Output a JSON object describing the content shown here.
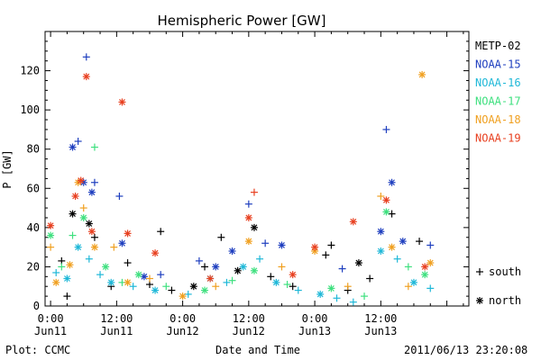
{
  "chart_data": {
    "type": "scatter",
    "title": "Hemispheric Power [GW]",
    "xlabel": "Date and Time",
    "ylabel": "P [GW]",
    "ylim": [
      0,
      140
    ],
    "xlim": [
      "2011-06-10T23:00",
      "2011-06-14T04:00"
    ],
    "y_ticks": [
      0,
      20,
      40,
      60,
      80,
      100,
      120
    ],
    "x_ticks": [
      {
        "x": "2011-06-11T00:00",
        "label": "0:00",
        "date": "Jun11"
      },
      {
        "x": "2011-06-11T12:00",
        "label": "12:00",
        "date": "Jun11"
      },
      {
        "x": "2011-06-12T00:00",
        "label": "0:00",
        "date": "Jun12"
      },
      {
        "x": "2011-06-12T12:00",
        "label": "12:00",
        "date": "Jun12"
      },
      {
        "x": "2011-06-13T00:00",
        "label": "0:00",
        "date": "Jun13"
      },
      {
        "x": "2011-06-13T12:00",
        "label": "12:00",
        "date": "Jun13"
      }
    ],
    "legend_position": "right",
    "series": [
      {
        "name": "METP-02",
        "color": "#000000",
        "points": [
          {
            "x": "2011-06-11T02:00",
            "y": 23,
            "h": "S"
          },
          {
            "x": "2011-06-11T03:00",
            "y": 5,
            "h": "S"
          },
          {
            "x": "2011-06-11T04:00",
            "y": 47,
            "h": "N"
          },
          {
            "x": "2011-06-11T07:00",
            "y": 42,
            "h": "N"
          },
          {
            "x": "2011-06-11T08:00",
            "y": 35,
            "h": "S"
          },
          {
            "x": "2011-06-11T11:00",
            "y": 10,
            "h": "S"
          },
          {
            "x": "2011-06-11T14:00",
            "y": 22,
            "h": "S"
          },
          {
            "x": "2011-06-11T18:00",
            "y": 11,
            "h": "S"
          },
          {
            "x": "2011-06-11T20:00",
            "y": 38,
            "h": "S"
          },
          {
            "x": "2011-06-11T22:00",
            "y": 8,
            "h": "S"
          },
          {
            "x": "2011-06-12T02:00",
            "y": 10,
            "h": "N"
          },
          {
            "x": "2011-06-12T04:00",
            "y": 20,
            "h": "S"
          },
          {
            "x": "2011-06-12T07:00",
            "y": 35,
            "h": "S"
          },
          {
            "x": "2011-06-12T10:00",
            "y": 18,
            "h": "N"
          },
          {
            "x": "2011-06-12T13:00",
            "y": 40,
            "h": "N"
          },
          {
            "x": "2011-06-12T16:00",
            "y": 15,
            "h": "S"
          },
          {
            "x": "2011-06-12T20:00",
            "y": 10,
            "h": "S"
          },
          {
            "x": "2011-06-13T02:00",
            "y": 26,
            "h": "S"
          },
          {
            "x": "2011-06-13T03:00",
            "y": 31,
            "h": "S"
          },
          {
            "x": "2011-06-13T06:00",
            "y": 8,
            "h": "S"
          },
          {
            "x": "2011-06-13T08:00",
            "y": 22,
            "h": "N"
          },
          {
            "x": "2011-06-13T10:00",
            "y": 14,
            "h": "S"
          },
          {
            "x": "2011-06-13T14:00",
            "y": 47,
            "h": "S"
          },
          {
            "x": "2011-06-13T19:00",
            "y": 33,
            "h": "S"
          }
        ]
      },
      {
        "name": "NOAA-15",
        "color": "#1f3fbf",
        "points": [
          {
            "x": "2011-06-11T04:00",
            "y": 81,
            "h": "N"
          },
          {
            "x": "2011-06-11T05:00",
            "y": 84,
            "h": "S"
          },
          {
            "x": "2011-06-11T06:00",
            "y": 63,
            "h": "N"
          },
          {
            "x": "2011-06-11T06:30",
            "y": 127,
            "h": "S"
          },
          {
            "x": "2011-06-11T07:30",
            "y": 58,
            "h": "N"
          },
          {
            "x": "2011-06-11T08:00",
            "y": 63,
            "h": "S"
          },
          {
            "x": "2011-06-11T12:30",
            "y": 56,
            "h": "S"
          },
          {
            "x": "2011-06-11T13:00",
            "y": 32,
            "h": "N"
          },
          {
            "x": "2011-06-11T17:00",
            "y": 15,
            "h": "N"
          },
          {
            "x": "2011-06-11T20:00",
            "y": 16,
            "h": "S"
          },
          {
            "x": "2011-06-12T03:00",
            "y": 23,
            "h": "S"
          },
          {
            "x": "2011-06-12T06:00",
            "y": 20,
            "h": "N"
          },
          {
            "x": "2011-06-12T09:00",
            "y": 28,
            "h": "N"
          },
          {
            "x": "2011-06-12T12:00",
            "y": 52,
            "h": "S"
          },
          {
            "x": "2011-06-12T15:00",
            "y": 32,
            "h": "S"
          },
          {
            "x": "2011-06-12T18:00",
            "y": 31,
            "h": "N"
          },
          {
            "x": "2011-06-13T05:00",
            "y": 19,
            "h": "S"
          },
          {
            "x": "2011-06-13T12:00",
            "y": 38,
            "h": "N"
          },
          {
            "x": "2011-06-13T13:00",
            "y": 90,
            "h": "S"
          },
          {
            "x": "2011-06-13T14:00",
            "y": 63,
            "h": "N"
          },
          {
            "x": "2011-06-13T16:00",
            "y": 33,
            "h": "N"
          },
          {
            "x": "2011-06-13T21:00",
            "y": 31,
            "h": "S"
          }
        ]
      },
      {
        "name": "NOAA-16",
        "color": "#1fb8d8",
        "points": [
          {
            "x": "2011-06-11T01:00",
            "y": 17,
            "h": "S"
          },
          {
            "x": "2011-06-11T03:00",
            "y": 14,
            "h": "N"
          },
          {
            "x": "2011-06-11T05:00",
            "y": 30,
            "h": "N"
          },
          {
            "x": "2011-06-11T07:00",
            "y": 24,
            "h": "S"
          },
          {
            "x": "2011-06-11T09:00",
            "y": 16,
            "h": "S"
          },
          {
            "x": "2011-06-11T11:00",
            "y": 12,
            "h": "N"
          },
          {
            "x": "2011-06-11T15:00",
            "y": 10,
            "h": "S"
          },
          {
            "x": "2011-06-11T19:00",
            "y": 8,
            "h": "N"
          },
          {
            "x": "2011-06-12T01:00",
            "y": 6,
            "h": "S"
          },
          {
            "x": "2011-06-12T05:00",
            "y": 14,
            "h": "N"
          },
          {
            "x": "2011-06-12T08:00",
            "y": 12,
            "h": "S"
          },
          {
            "x": "2011-06-12T11:00",
            "y": 20,
            "h": "N"
          },
          {
            "x": "2011-06-12T14:00",
            "y": 24,
            "h": "S"
          },
          {
            "x": "2011-06-12T17:00",
            "y": 12,
            "h": "N"
          },
          {
            "x": "2011-06-12T21:00",
            "y": 8,
            "h": "S"
          },
          {
            "x": "2011-06-13T01:00",
            "y": 6,
            "h": "N"
          },
          {
            "x": "2011-06-13T04:00",
            "y": 4,
            "h": "S"
          },
          {
            "x": "2011-06-13T07:00",
            "y": 2,
            "h": "S"
          },
          {
            "x": "2011-06-13T12:00",
            "y": 28,
            "h": "N"
          },
          {
            "x": "2011-06-13T15:00",
            "y": 24,
            "h": "S"
          },
          {
            "x": "2011-06-13T18:00",
            "y": 12,
            "h": "N"
          },
          {
            "x": "2011-06-13T21:00",
            "y": 9,
            "h": "S"
          }
        ]
      },
      {
        "name": "NOAA-17",
        "color": "#3fe07f",
        "points": [
          {
            "x": "2011-06-11T00:00",
            "y": 36,
            "h": "N"
          },
          {
            "x": "2011-06-11T02:00",
            "y": 20,
            "h": "S"
          },
          {
            "x": "2011-06-11T04:00",
            "y": 36,
            "h": "S"
          },
          {
            "x": "2011-06-11T06:00",
            "y": 45,
            "h": "N"
          },
          {
            "x": "2011-06-11T08:00",
            "y": 81,
            "h": "S"
          },
          {
            "x": "2011-06-11T10:00",
            "y": 20,
            "h": "N"
          },
          {
            "x": "2011-06-11T13:00",
            "y": 12,
            "h": "S"
          },
          {
            "x": "2011-06-11T16:00",
            "y": 16,
            "h": "N"
          },
          {
            "x": "2011-06-11T21:00",
            "y": 10,
            "h": "S"
          },
          {
            "x": "2011-06-12T04:00",
            "y": 8,
            "h": "N"
          },
          {
            "x": "2011-06-12T09:00",
            "y": 13,
            "h": "S"
          },
          {
            "x": "2011-06-12T13:00",
            "y": 18,
            "h": "N"
          },
          {
            "x": "2011-06-12T19:00",
            "y": 11,
            "h": "S"
          },
          {
            "x": "2011-06-13T03:00",
            "y": 9,
            "h": "N"
          },
          {
            "x": "2011-06-13T09:00",
            "y": 5,
            "h": "S"
          },
          {
            "x": "2011-06-13T13:00",
            "y": 48,
            "h": "N"
          },
          {
            "x": "2011-06-13T17:00",
            "y": 20,
            "h": "S"
          },
          {
            "x": "2011-06-13T20:00",
            "y": 16,
            "h": "N"
          }
        ]
      },
      {
        "name": "NOAA-18",
        "color": "#f0a020",
        "points": [
          {
            "x": "2011-06-11T00:00",
            "y": 30,
            "h": "S"
          },
          {
            "x": "2011-06-11T01:00",
            "y": 12,
            "h": "N"
          },
          {
            "x": "2011-06-11T03:30",
            "y": 21,
            "h": "N"
          },
          {
            "x": "2011-06-11T05:00",
            "y": 63,
            "h": "N"
          },
          {
            "x": "2011-06-11T06:00",
            "y": 50,
            "h": "S"
          },
          {
            "x": "2011-06-11T08:00",
            "y": 30,
            "h": "N"
          },
          {
            "x": "2011-06-11T11:30",
            "y": 30,
            "h": "S"
          },
          {
            "x": "2011-06-11T14:00",
            "y": 12,
            "h": "N"
          },
          {
            "x": "2011-06-11T18:00",
            "y": 14,
            "h": "S"
          },
          {
            "x": "2011-06-12T00:00",
            "y": 5,
            "h": "N"
          },
          {
            "x": "2011-06-12T06:00",
            "y": 10,
            "h": "S"
          },
          {
            "x": "2011-06-12T12:00",
            "y": 33,
            "h": "N"
          },
          {
            "x": "2011-06-12T18:00",
            "y": 20,
            "h": "S"
          },
          {
            "x": "2011-06-13T00:00",
            "y": 28,
            "h": "N"
          },
          {
            "x": "2011-06-13T06:00",
            "y": 10,
            "h": "S"
          },
          {
            "x": "2011-06-13T12:00",
            "y": 56,
            "h": "S"
          },
          {
            "x": "2011-06-13T14:00",
            "y": 30,
            "h": "N"
          },
          {
            "x": "2011-06-13T17:00",
            "y": 10,
            "h": "S"
          },
          {
            "x": "2011-06-13T19:30",
            "y": 118,
            "h": "N"
          },
          {
            "x": "2011-06-13T21:00",
            "y": 22,
            "h": "N"
          }
        ]
      },
      {
        "name": "NOAA-19",
        "color": "#e84020",
        "points": [
          {
            "x": "2011-06-11T00:00",
            "y": 41,
            "h": "N"
          },
          {
            "x": "2011-06-11T04:30",
            "y": 56,
            "h": "N"
          },
          {
            "x": "2011-06-11T05:30",
            "y": 64,
            "h": "N"
          },
          {
            "x": "2011-06-11T06:30",
            "y": 117,
            "h": "N"
          },
          {
            "x": "2011-06-11T07:30",
            "y": 38,
            "h": "N"
          },
          {
            "x": "2011-06-11T13:00",
            "y": 104,
            "h": "N"
          },
          {
            "x": "2011-06-11T14:00",
            "y": 37,
            "h": "N"
          },
          {
            "x": "2011-06-11T19:00",
            "y": 27,
            "h": "N"
          },
          {
            "x": "2011-06-12T05:00",
            "y": 14,
            "h": "N"
          },
          {
            "x": "2011-06-12T12:00",
            "y": 45,
            "h": "N"
          },
          {
            "x": "2011-06-12T13:00",
            "y": 58,
            "h": "S"
          },
          {
            "x": "2011-06-12T20:00",
            "y": 16,
            "h": "N"
          },
          {
            "x": "2011-06-13T00:00",
            "y": 30,
            "h": "N"
          },
          {
            "x": "2011-06-13T07:00",
            "y": 43,
            "h": "N"
          },
          {
            "x": "2011-06-13T13:00",
            "y": 54,
            "h": "N"
          },
          {
            "x": "2011-06-13T20:00",
            "y": 20,
            "h": "N"
          }
        ]
      }
    ],
    "marker_legend": [
      {
        "symbol": "+",
        "label": "south"
      },
      {
        "symbol": "*",
        "label": "north"
      }
    ]
  },
  "footer": {
    "left": "Plot: CCMC",
    "right": "2011/06/13 23:20:08"
  }
}
